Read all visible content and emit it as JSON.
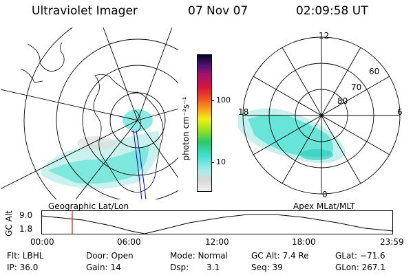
{
  "header": {
    "instrument": "Ultraviolet Imager",
    "date": "07 Nov 07",
    "time": "02:09:58 UT"
  },
  "colorbar": {
    "unit_label": "photon cm⁻²s⁻¹",
    "ticks": [
      "100",
      "10"
    ]
  },
  "polar_plot": {
    "mlt_labels": [
      "12",
      "18",
      "6",
      "0"
    ],
    "lat_labels": [
      "60",
      "70",
      "80"
    ]
  },
  "map_captions": {
    "left": "Geographic Lat/Lon",
    "right": "Apex MLat/MLT"
  },
  "altitude_plot": {
    "ylabel": "GC Alt",
    "yticks": [
      "9.0",
      "1.8"
    ],
    "xticks": [
      "00:00",
      "06:00",
      "12:00",
      "18:00",
      "23:59"
    ]
  },
  "info": {
    "flt": "Flt: LBHL",
    "ip": "IP: 36.0",
    "door": "Door: Open",
    "gain": "Gain: 14",
    "mode": "Mode: Normal",
    "dsp_label": "Dsp:",
    "dsp_value": "3.1",
    "gc_alt": "GC Alt: 7.4 Re",
    "seq": "Seq: 39",
    "glat": "GLat: −71.6",
    "glon": "GLon: 267.1"
  },
  "colors": {
    "aurora": "#40e0d0",
    "marker": "#ff0000",
    "track": "#0000cc"
  }
}
